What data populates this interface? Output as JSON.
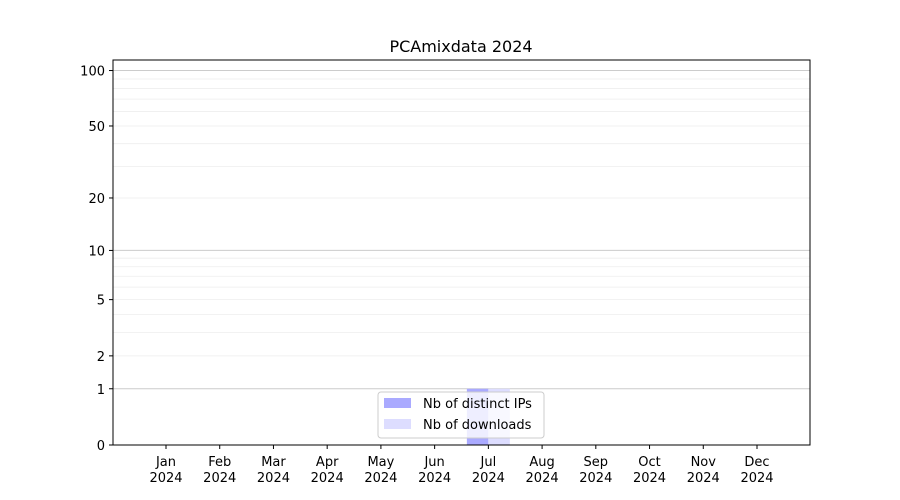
{
  "chart_data": {
    "type": "bar",
    "title": "PCAmixdata 2024",
    "xlabel": "",
    "ylabel": "",
    "yscale": "log(1+y)",
    "ylim": [
      0,
      114
    ],
    "yticks": [
      0,
      1,
      2,
      5,
      10,
      20,
      50,
      100
    ],
    "categories": [
      "Jan\n2024",
      "Feb\n2024",
      "Mar\n2024",
      "Apr\n2024",
      "May\n2024",
      "Jun\n2024",
      "Jul\n2024",
      "Aug\n2024",
      "Sep\n2024",
      "Oct\n2024",
      "Nov\n2024",
      "Dec\n2024"
    ],
    "series": [
      {
        "name": "Nb of distinct IPs",
        "color": "#aaaaff",
        "values": [
          0,
          0,
          0,
          0,
          0,
          0,
          1,
          0,
          0,
          0,
          0,
          0
        ]
      },
      {
        "name": "Nb of downloads",
        "color": "#ddddff",
        "values": [
          0,
          0,
          0,
          0,
          0,
          0,
          1,
          0,
          0,
          0,
          0,
          0
        ]
      }
    ],
    "grid": true,
    "legend": "lower-center"
  }
}
